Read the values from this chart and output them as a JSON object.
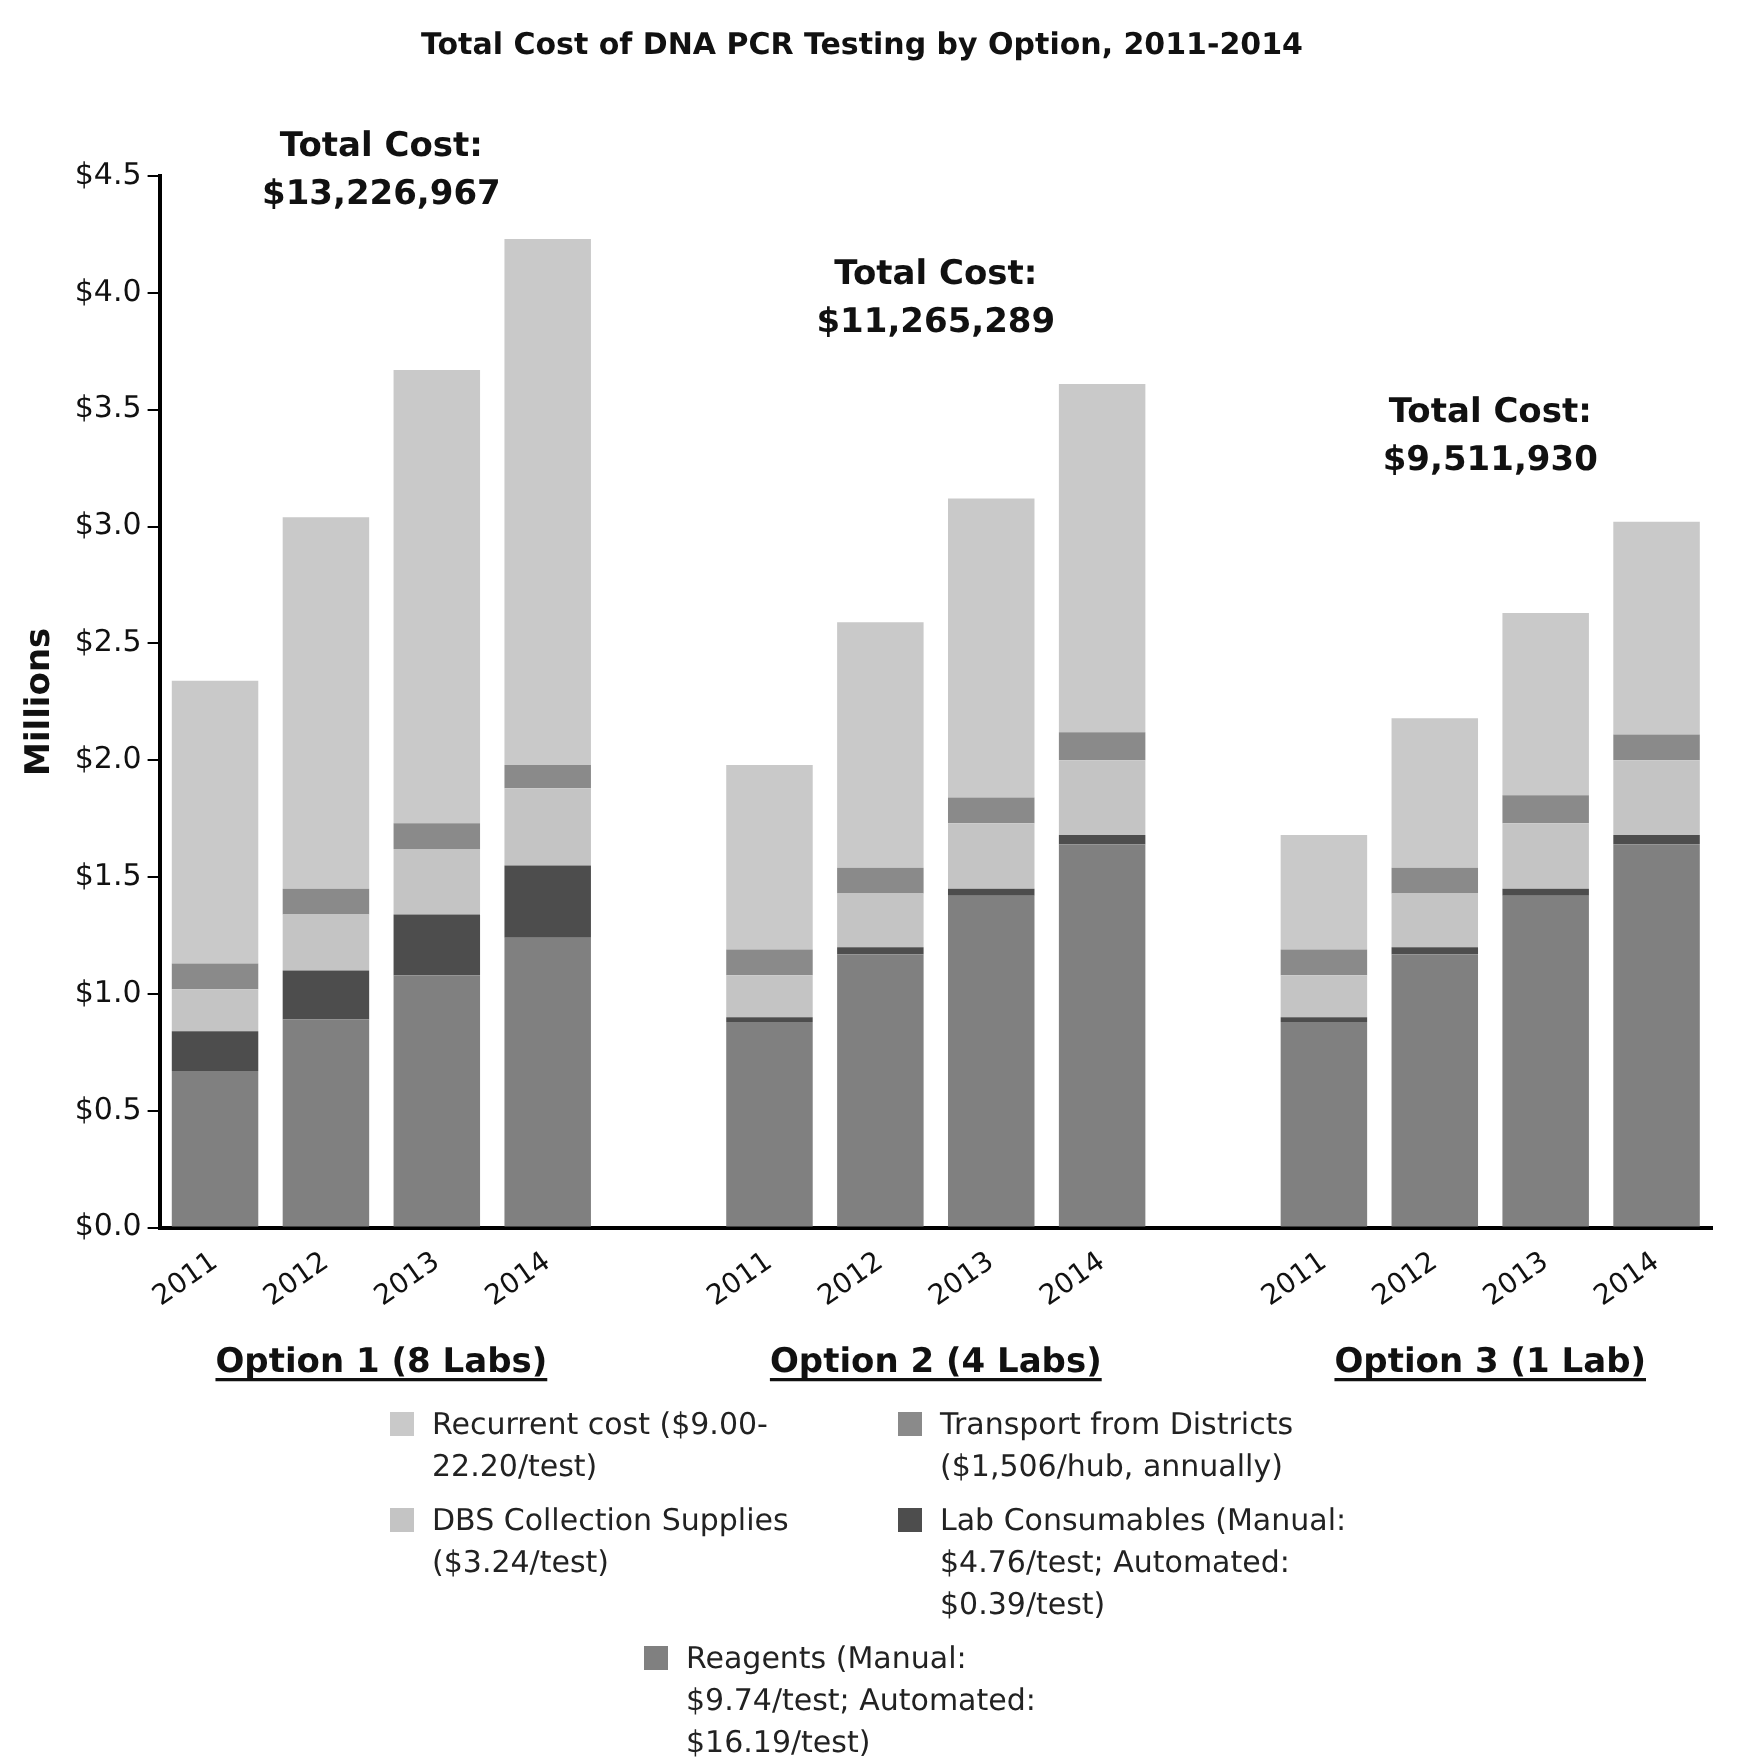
{
  "chart_data": {
    "type": "bar",
    "stacked": true,
    "title": "Total Cost of DNA PCR Testing by Option, 2011-2014",
    "ylabel": "Millions",
    "categories": [
      "2011",
      "2012",
      "2013",
      "2014",
      null,
      "2011",
      "2012",
      "2013",
      "2014",
      null,
      "2011",
      "2012",
      "2013",
      "2014"
    ],
    "series": [
      {
        "name": "Reagents (Manual: $9.74/test; Automated: $16.19/test)",
        "color": "#808080",
        "values": [
          0.67,
          0.89,
          1.08,
          1.24,
          null,
          0.88,
          1.17,
          1.42,
          1.64,
          null,
          0.88,
          1.17,
          1.42,
          1.64
        ]
      },
      {
        "name": "Lab Consumables (Manual: $4.76/test; Automated: $0.39/test)",
        "color": "#4d4d4d",
        "values": [
          0.17,
          0.21,
          0.26,
          0.31,
          null,
          0.02,
          0.03,
          0.03,
          0.04,
          null,
          0.02,
          0.03,
          0.03,
          0.04
        ]
      },
      {
        "name": "DBS Collection Supplies ($3.24/test)",
        "color": "#c4c4c4",
        "values": [
          0.18,
          0.24,
          0.28,
          0.33,
          null,
          0.18,
          0.23,
          0.28,
          0.32,
          null,
          0.18,
          0.23,
          0.28,
          0.32
        ]
      },
      {
        "name": "Transport from Districts ($1,506/hub, annually)",
        "color": "#8a8a8a",
        "values": [
          0.11,
          0.11,
          0.11,
          0.1,
          null,
          0.11,
          0.11,
          0.11,
          0.12,
          null,
          0.11,
          0.11,
          0.12,
          0.11
        ]
      },
      {
        "name": "Recurrent cost ($9.00-22.20/test)",
        "color": "#c9c9c9",
        "values": [
          1.21,
          1.59,
          1.94,
          2.25,
          null,
          0.79,
          1.05,
          1.28,
          1.49,
          null,
          0.49,
          0.64,
          0.78,
          0.91
        ]
      }
    ],
    "ylim": [
      0,
      4.5
    ],
    "yticks": [
      {
        "value": 0,
        "label": "$0.0"
      },
      {
        "value": 0.5,
        "label": "$0.5"
      },
      {
        "value": 1,
        "label": "$1.0"
      },
      {
        "value": 1.5,
        "label": "$1.5"
      },
      {
        "value": 2,
        "label": "$2.0"
      },
      {
        "value": 2.5,
        "label": "$2.5"
      },
      {
        "value": 3,
        "label": "$3.0"
      },
      {
        "value": 3.5,
        "label": "$3.5"
      },
      {
        "value": 4,
        "label": "$4.0"
      },
      {
        "value": 4.5,
        "label": "$4.5"
      }
    ],
    "annotations": [
      "Total Cost:",
      "$13,226,967",
      "Total Cost:",
      "$11,265,289",
      "Total Cost:",
      "$9,511,930",
      "Option 1 (8 Labs)",
      "Option 2 (4 Labs)",
      "Option 3 (1 Lab)"
    ],
    "grid": false,
    "legend": "bottom"
  }
}
